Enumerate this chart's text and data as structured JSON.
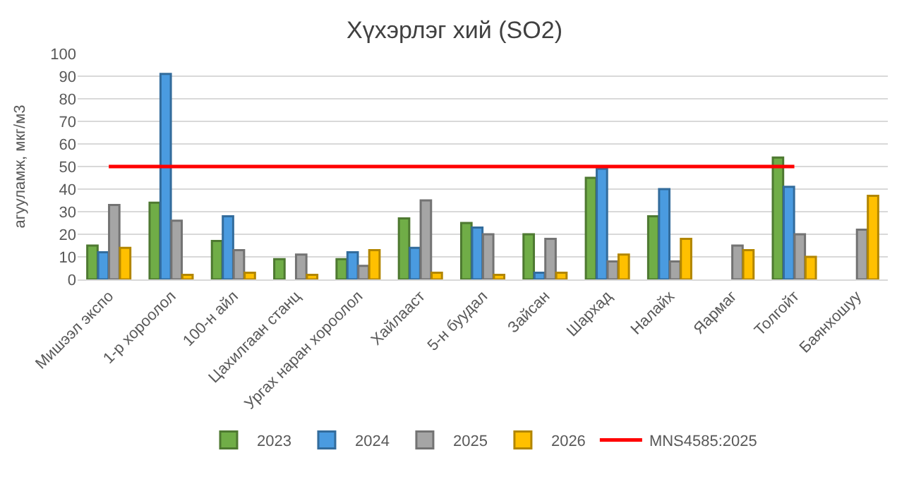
{
  "chart_data": {
    "type": "bar",
    "title": "Хүхэрлэг хий (SO2)",
    "ylabel": "агууламж, мкг/м3",
    "categories": [
      "Мишээл экспо",
      "1-р хороолол",
      "100-н айл",
      "Цахилгаан станц",
      "Ургах наран хороолол",
      "Хайлааст",
      "5-н буудал",
      "Зайсан",
      "Шархад",
      "Налайх",
      "Яармаг",
      "Толгойт",
      "Баянхошуу"
    ],
    "series": [
      {
        "name": "2023",
        "color": "#70ad47",
        "values": [
          15,
          34,
          17,
          9,
          9,
          27,
          25,
          20,
          45,
          28,
          null,
          54,
          null
        ]
      },
      {
        "name": "2024",
        "color": "#4a9be0",
        "values": [
          12,
          91,
          28,
          null,
          12,
          14,
          23,
          3,
          49,
          40,
          null,
          41,
          null
        ]
      },
      {
        "name": "2025",
        "color": "#a5a5a5",
        "values": [
          33,
          26,
          13,
          11,
          6,
          35,
          20,
          18,
          8,
          8,
          15,
          20,
          22
        ]
      },
      {
        "name": "2026",
        "color": "#ffc000",
        "values": [
          14,
          2,
          3,
          2,
          13,
          3,
          2,
          3,
          11,
          18,
          13,
          10,
          37
        ]
      },
      {
        "name": "MNS4585:2025",
        "color": "#ff0000",
        "type": "line",
        "values": [
          50,
          50,
          50,
          50,
          50,
          50,
          50,
          50,
          50,
          50,
          50,
          50,
          null
        ]
      }
    ],
    "ylim": [
      0,
      100
    ],
    "yticks": [
      0,
      10,
      20,
      30,
      40,
      50,
      60,
      70,
      80,
      90,
      100
    ],
    "grid": "y",
    "legend": "bottom"
  }
}
